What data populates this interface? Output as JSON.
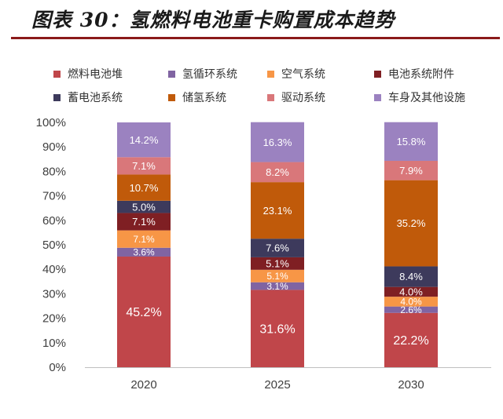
{
  "title": "图表 30：氢燃料电池重卡购置成本趋势",
  "chart_data": {
    "type": "bar",
    "stacked": true,
    "categories": [
      "2020",
      "2025",
      "2030"
    ],
    "ylim": [
      0,
      100
    ],
    "yticks": [
      "0%",
      "10%",
      "20%",
      "30%",
      "40%",
      "50%",
      "60%",
      "70%",
      "80%",
      "90%",
      "100%"
    ],
    "legend_placement": "top",
    "series": [
      {
        "name": "燃料电池堆",
        "color": "#c0464a",
        "label_color": "#ffffff",
        "label_size": 16,
        "values": [
          45.2,
          31.6,
          22.2
        ],
        "labels": [
          "45.2%",
          "31.6%",
          "22.2%"
        ]
      },
      {
        "name": "氢循环系统",
        "color": "#8064a2",
        "label_color": "#ffffff",
        "label_size": 12,
        "values": [
          3.6,
          3.1,
          2.6
        ],
        "labels": [
          "3.6%",
          "3.1%",
          "2.6%"
        ]
      },
      {
        "name": "空气系统",
        "color": "#f79646",
        "label_color": "#ffffff",
        "label_size": 12,
        "values": [
          7.1,
          5.1,
          4.0
        ],
        "labels": [
          "7.1%",
          "5.1%",
          "4.0%"
        ]
      },
      {
        "name": "电池系统附件",
        "color": "#7f1f23",
        "label_color": "#ffffff",
        "label_size": 13,
        "values": [
          7.1,
          5.1,
          4.0
        ],
        "labels": [
          "7.1%",
          "5.1%",
          "4.0%"
        ]
      },
      {
        "name": "蓄电池系统",
        "color": "#3d3a5c",
        "label_color": "#ffffff",
        "label_size": 13,
        "values": [
          5.0,
          7.6,
          8.4
        ],
        "labels": [
          "5.0%",
          "7.6%",
          "8.4%"
        ]
      },
      {
        "name": "储氢系统",
        "color": "#c05a0a",
        "label_color": "#ffffff",
        "label_size": 13,
        "values": [
          10.7,
          23.1,
          35.2
        ],
        "labels": [
          "10.7%",
          "23.1%",
          "35.2%"
        ]
      },
      {
        "name": "驱动系统",
        "color": "#d9777a",
        "label_color": "#ffffff",
        "label_size": 13,
        "values": [
          7.1,
          8.2,
          7.9
        ],
        "labels": [
          "7.1%",
          "8.2%",
          "7.9%"
        ]
      },
      {
        "name": "车身及其他设施",
        "color": "#9b82c0",
        "label_color": "#ffffff",
        "label_size": 13,
        "values": [
          14.2,
          16.3,
          15.8
        ],
        "labels": [
          "14.2%",
          "16.3%",
          "15.8%"
        ]
      }
    ]
  }
}
